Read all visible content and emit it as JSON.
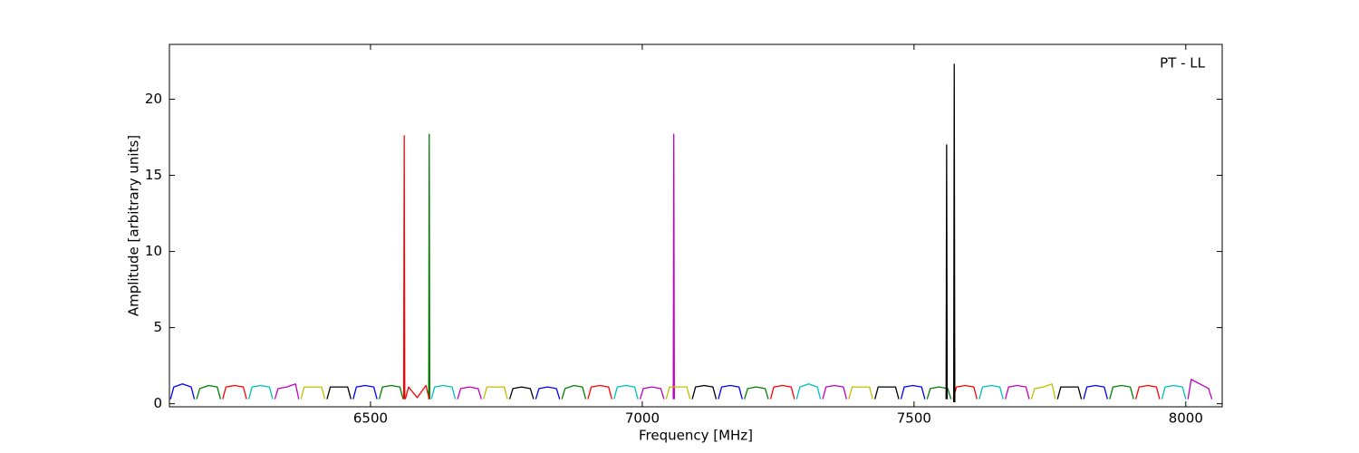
{
  "chart_data": {
    "type": "line",
    "annotation": "PT - LL",
    "x_label": "Frequency [MHz]",
    "y_label": "Amplitude [arbitrary units]",
    "xlim": [
      6130,
      8067
    ],
    "ylim": [
      -0.2,
      23.6
    ],
    "xticks": [
      6500,
      7000,
      7500,
      8000
    ],
    "yticks": [
      0,
      5,
      10,
      15,
      20
    ],
    "grid": false,
    "series": [
      {
        "color": "#0000ff",
        "x": [
          6132,
          6138,
          6154,
          6170,
          6176,
          null,
          6468,
          6474,
          6490,
          6506,
          6512,
          null,
          6804,
          6810,
          6826,
          6842,
          6848,
          null,
          7140,
          7146,
          7162,
          7178,
          7184,
          null,
          7476,
          7482,
          7498,
          7514,
          7520,
          null,
          7812,
          7818,
          7834,
          7850,
          7856
        ],
        "values": [
          0.3,
          1.1,
          1.3,
          1.1,
          0.3,
          null,
          0.3,
          1.1,
          1.2,
          1.1,
          0.3,
          null,
          0.3,
          1.0,
          1.1,
          1.0,
          0.3,
          null,
          0.3,
          1.1,
          1.2,
          1.1,
          0.3,
          null,
          0.3,
          1.1,
          1.2,
          1.1,
          0.3,
          null,
          0.3,
          1.1,
          1.2,
          1.1,
          0.3
        ]
      },
      {
        "color": "#008000",
        "x": [
          6180,
          6186,
          6202,
          6218,
          6224,
          null,
          6516,
          6522,
          6538,
          6554,
          6560,
          null,
          6607,
          6608,
          6609,
          null,
          6852,
          6858,
          6874,
          6890,
          6896,
          null,
          7188,
          7194,
          7210,
          7226,
          7232,
          null,
          7524,
          7530,
          7546,
          7562,
          7568,
          null,
          7860,
          7866,
          7882,
          7898,
          7904
        ],
        "values": [
          0.3,
          1.0,
          1.2,
          1.1,
          0.3,
          null,
          0.3,
          1.1,
          1.2,
          1.1,
          0.3,
          null,
          0.3,
          17.7,
          0.3,
          null,
          0.3,
          1.0,
          1.2,
          1.1,
          0.3,
          null,
          0.3,
          1.0,
          1.1,
          1.0,
          0.3,
          null,
          0.3,
          1.0,
          1.1,
          1.0,
          0.3,
          null,
          0.3,
          1.1,
          1.2,
          1.1,
          0.3
        ]
      },
      {
        "color": "#ff0000",
        "x": [
          6228,
          6234,
          6250,
          6266,
          6272,
          null,
          6561,
          6562,
          6563,
          null,
          6564,
          6570,
          6586,
          6602,
          6608,
          null,
          6900,
          6906,
          6922,
          6938,
          6944,
          null,
          7236,
          7242,
          7258,
          7274,
          7280,
          null,
          7572,
          7578,
          7594,
          7610,
          7616,
          null,
          7908,
          7914,
          7930,
          7946,
          7952
        ],
        "values": [
          0.3,
          1.1,
          1.2,
          1.1,
          0.3,
          null,
          0.3,
          17.6,
          0.3,
          null,
          0.3,
          1.1,
          0.4,
          1.2,
          0.3,
          null,
          0.3,
          1.1,
          1.2,
          1.1,
          0.3,
          null,
          0.3,
          1.1,
          1.2,
          1.1,
          0.3,
          null,
          0.3,
          1.1,
          1.2,
          1.1,
          0.3,
          null,
          0.3,
          1.1,
          1.2,
          1.1,
          0.3
        ]
      },
      {
        "color": "#00bfbf",
        "x": [
          6276,
          6282,
          6298,
          6314,
          6320,
          null,
          6612,
          6618,
          6634,
          6650,
          6656,
          null,
          6948,
          6954,
          6970,
          6986,
          6992,
          null,
          7284,
          7290,
          7306,
          7322,
          7328,
          null,
          7620,
          7626,
          7642,
          7658,
          7664,
          null,
          7956,
          7962,
          7978,
          7994,
          8000
        ],
        "values": [
          0.3,
          1.1,
          1.2,
          1.1,
          0.3,
          null,
          0.3,
          1.1,
          1.2,
          1.1,
          0.3,
          null,
          0.3,
          1.1,
          1.2,
          1.1,
          0.3,
          null,
          0.3,
          1.1,
          1.3,
          1.1,
          0.3,
          null,
          0.3,
          1.1,
          1.2,
          1.1,
          0.3,
          null,
          0.3,
          1.1,
          1.2,
          1.1,
          0.3
        ]
      },
      {
        "color": "#bf00bf",
        "x": [
          6324,
          6330,
          6346,
          6362,
          6368,
          null,
          6660,
          6666,
          6682,
          6698,
          6704,
          null,
          6996,
          7002,
          7018,
          7034,
          7040,
          null,
          7057,
          7058,
          7059,
          null,
          7332,
          7338,
          7354,
          7370,
          7376,
          null,
          7668,
          7674,
          7690,
          7706,
          7712,
          null,
          8004,
          8010,
          8026,
          8042,
          8048
        ],
        "values": [
          0.3,
          1.0,
          1.1,
          1.3,
          0.3,
          null,
          0.3,
          1.0,
          1.1,
          1.0,
          0.3,
          null,
          0.3,
          1.0,
          1.1,
          1.0,
          0.3,
          null,
          0.3,
          17.7,
          0.3,
          null,
          0.3,
          1.1,
          1.2,
          1.1,
          0.3,
          null,
          0.3,
          1.1,
          1.2,
          1.1,
          0.3,
          null,
          0.3,
          1.6,
          1.3,
          1.0,
          0.3
        ]
      },
      {
        "color": "#bfbf00",
        "x": [
          6372,
          6378,
          6394,
          6410,
          6416,
          null,
          6708,
          6714,
          6730,
          6746,
          6752,
          null,
          7044,
          7050,
          7066,
          7082,
          7088,
          null,
          7380,
          7386,
          7402,
          7418,
          7424,
          null,
          7716,
          7722,
          7738,
          7754,
          7760
        ],
        "values": [
          0.3,
          1.1,
          1.1,
          1.1,
          0.3,
          null,
          0.3,
          1.1,
          1.1,
          1.1,
          0.3,
          null,
          0.3,
          1.1,
          1.1,
          1.1,
          0.3,
          null,
          0.3,
          1.1,
          1.1,
          1.1,
          0.3,
          null,
          0.3,
          1.0,
          1.1,
          1.3,
          0.3
        ]
      },
      {
        "color": "#000000",
        "x": [
          6420,
          6426,
          6442,
          6458,
          6464,
          null,
          6756,
          6762,
          6778,
          6794,
          6800,
          null,
          7092,
          7098,
          7114,
          7130,
          7136,
          null,
          7428,
          7434,
          7450,
          7466,
          7472,
          null,
          7559,
          7560,
          7561,
          null,
          7573,
          7574,
          7575,
          null,
          7764,
          7770,
          7786,
          7802,
          7808
        ],
        "values": [
          0.3,
          1.1,
          1.1,
          1.1,
          0.3,
          null,
          0.3,
          1.0,
          1.1,
          1.0,
          0.3,
          null,
          0.3,
          1.1,
          1.2,
          1.1,
          0.3,
          null,
          0.3,
          1.1,
          1.1,
          1.1,
          0.3,
          null,
          0.3,
          17.0,
          0.3,
          null,
          0.1,
          22.3,
          0.1,
          null,
          0.3,
          1.1,
          1.1,
          1.1,
          0.3
        ]
      }
    ]
  }
}
